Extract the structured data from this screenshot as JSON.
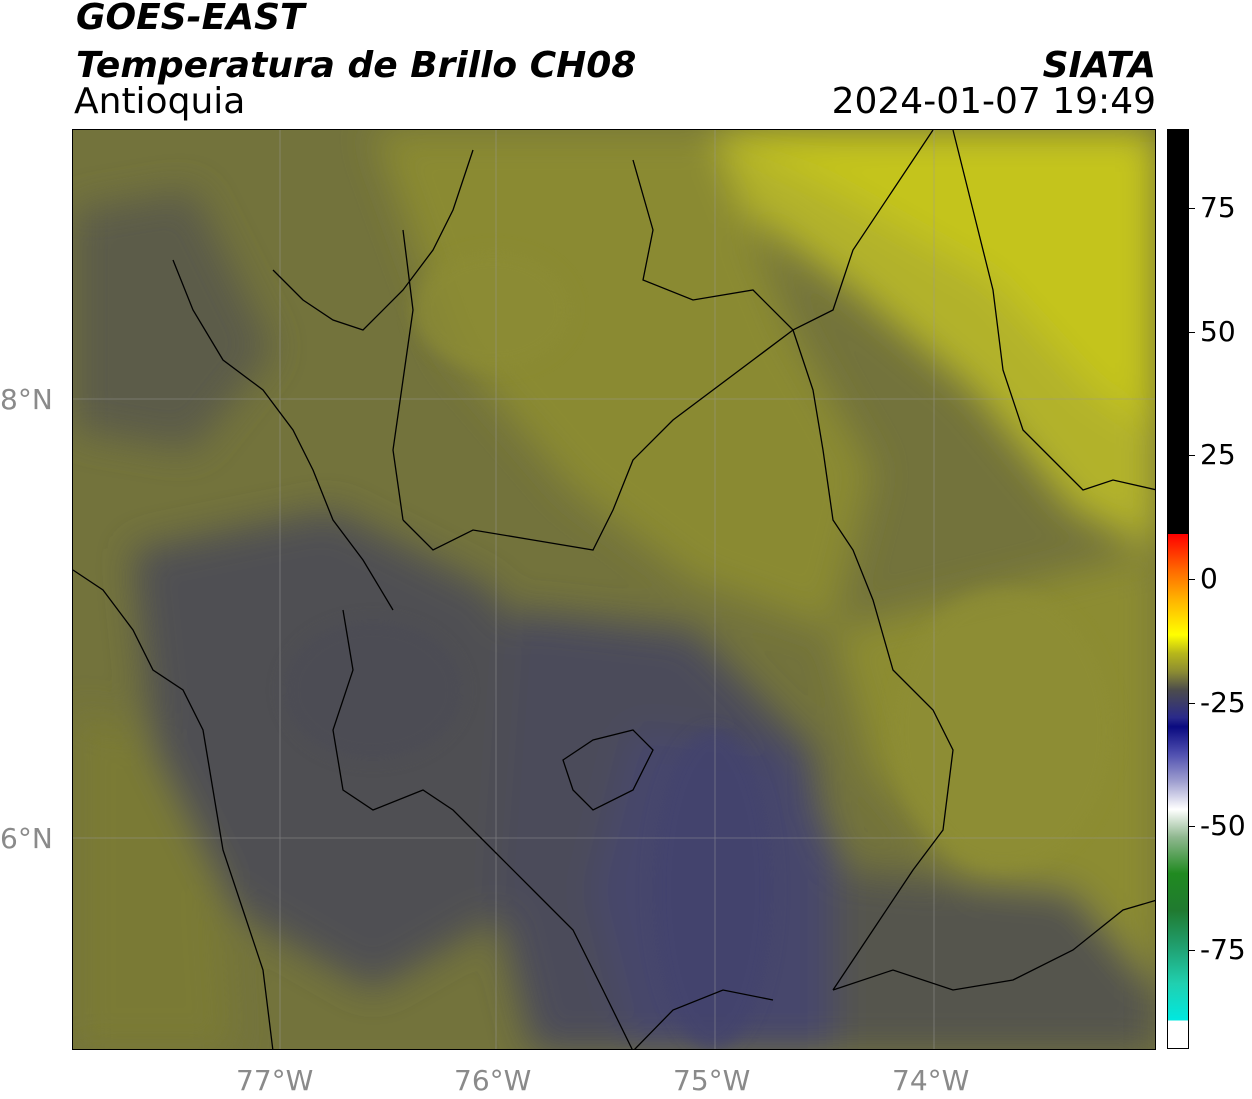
{
  "header": {
    "satellite": "GOES-EAST",
    "product": "Temperatura de Brillo CH08",
    "region": "Antioquia",
    "agency": "SIATA",
    "datetime": "2024-01-07 19:49"
  },
  "map": {
    "x_ticks": [
      "77°W",
      "76°W",
      "75°W",
      "74°W"
    ],
    "y_ticks": [
      "8°N",
      "6°N"
    ],
    "colors": {
      "dark_cold": "#4a4a52",
      "purple_cold": "#45456a",
      "olive_mid": "#6e6e3c",
      "olive_warm": "#8a8a32",
      "yellow_warm": "#b5b526",
      "yellow_bright": "#cccc1a",
      "boundary": "#000000",
      "grid": "#9a9a9a"
    }
  },
  "colorbar": {
    "tick_labels": [
      "75",
      "50",
      "25",
      "0",
      "-25",
      "-50",
      "-75"
    ],
    "tick_values": [
      75,
      50,
      25,
      0,
      -25,
      -50,
      -75
    ],
    "range": [
      -95,
      91
    ]
  }
}
